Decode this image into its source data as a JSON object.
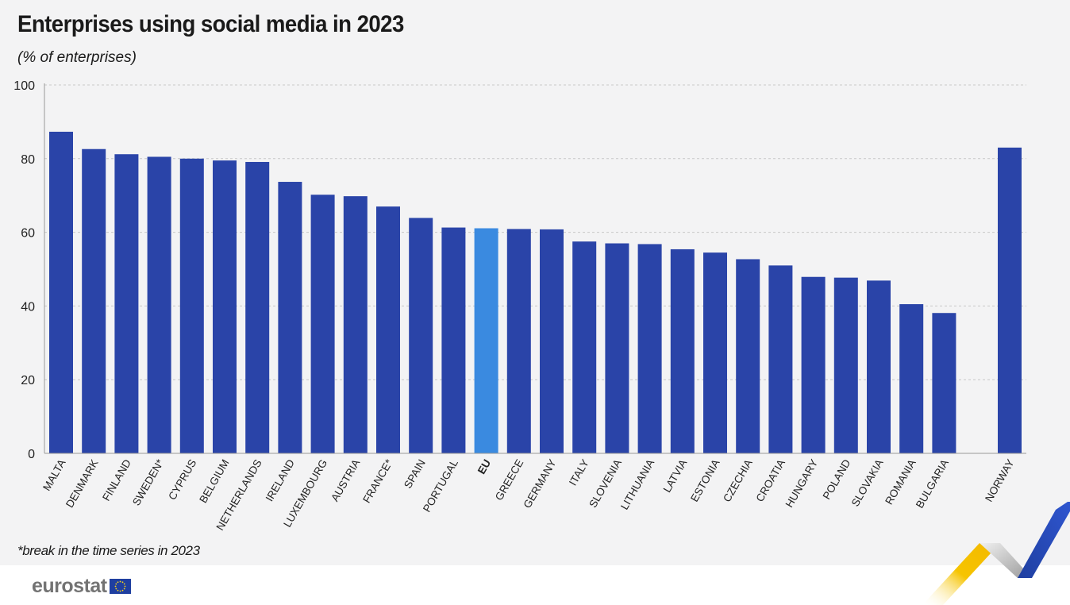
{
  "title": "Enterprises using social media in 2023",
  "subtitle": "(% of enterprises)",
  "footnote": "*break in the time series in 2023",
  "logo_text": "eurostat",
  "colors": {
    "bar": "#2a44a8",
    "highlight": "#3a8ae0",
    "grid": "#c8c8c8",
    "axis": "#999999"
  },
  "chart_data": {
    "type": "bar",
    "categories": [
      "MALTA",
      "DENMARK",
      "FINLAND",
      "SWEDEN*",
      "CYPRUS",
      "BELGIUM",
      "NETHERLANDS",
      "IRELAND",
      "LUXEMBOURG",
      "AUSTRIA",
      "FRANCE*",
      "SPAIN",
      "PORTUGAL",
      "EU",
      "GREECE",
      "GERMANY",
      "ITALY",
      "SLOVENIA",
      "LITHUANIA",
      "LATVIA",
      "ESTONIA",
      "CZECHIA",
      "CROATIA",
      "HUNGARY",
      "POLAND",
      "SLOVAKIA",
      "ROMANIA",
      "BULGARIA",
      "NORWAY"
    ],
    "values": [
      87.3,
      82.6,
      81.2,
      80.5,
      80.0,
      79.5,
      79.1,
      73.7,
      70.2,
      69.8,
      67.0,
      63.9,
      61.3,
      61.1,
      60.9,
      60.8,
      57.5,
      57.0,
      56.8,
      55.4,
      54.5,
      52.7,
      51.0,
      47.9,
      47.7,
      46.9,
      40.5,
      38.1,
      83.0
    ],
    "highlight": "EU",
    "ylim": [
      0,
      100
    ],
    "yticks": [
      0,
      20,
      40,
      60,
      80,
      100
    ],
    "xlabel": "",
    "ylabel": "",
    "grid": true,
    "legend": "none"
  }
}
